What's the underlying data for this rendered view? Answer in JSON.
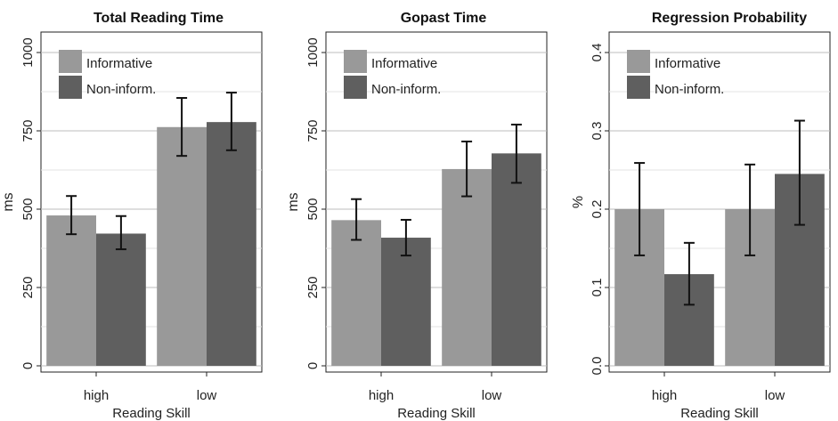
{
  "chart_data": [
    {
      "type": "bar",
      "title": "Total Reading Time",
      "xlabel": "Reading Skill",
      "ylabel": "ms",
      "categories": [
        "high",
        "low"
      ],
      "ylim": [
        0,
        1000
      ],
      "yticks": [
        0,
        250,
        500,
        750,
        1000
      ],
      "series": [
        {
          "name": "Informative",
          "color": "#999999",
          "values": [
            480,
            762
          ],
          "error_low": [
            420,
            670
          ],
          "error_high": [
            542,
            855
          ]
        },
        {
          "name": "Non-inform.",
          "color": "#5f5f5f",
          "values": [
            422,
            778
          ],
          "error_low": [
            372,
            688
          ],
          "error_high": [
            478,
            872
          ]
        }
      ],
      "legend": "top-left",
      "grid": true
    },
    {
      "type": "bar",
      "title": "Gopast Time",
      "xlabel": "Reading Skill",
      "ylabel": "ms",
      "categories": [
        "high",
        "low"
      ],
      "ylim": [
        0,
        1000
      ],
      "yticks": [
        0,
        250,
        500,
        750,
        1000
      ],
      "series": [
        {
          "name": "Informative",
          "color": "#999999",
          "values": [
            465,
            628
          ],
          "error_low": [
            402,
            541
          ],
          "error_high": [
            532,
            716
          ]
        },
        {
          "name": "Non-inform.",
          "color": "#5f5f5f",
          "values": [
            409,
            678
          ],
          "error_low": [
            352,
            584
          ],
          "error_high": [
            466,
            770
          ]
        }
      ],
      "legend": "top-left",
      "grid": true
    },
    {
      "type": "bar",
      "title": "Regression Probability",
      "xlabel": "Reading Skill",
      "ylabel": "%",
      "categories": [
        "high",
        "low"
      ],
      "ylim": [
        0,
        0.4
      ],
      "yticks": [
        "0.0",
        "0.1",
        "0.2",
        "0.3",
        "0.4"
      ],
      "series": [
        {
          "name": "Informative",
          "color": "#999999",
          "values": [
            0.2,
            0.2
          ],
          "error_low": [
            0.141,
            0.141
          ],
          "error_high": [
            0.259,
            0.257
          ]
        },
        {
          "name": "Non-inform.",
          "color": "#5f5f5f",
          "values": [
            0.117,
            0.245
          ],
          "error_low": [
            0.078,
            0.18
          ],
          "error_high": [
            0.157,
            0.313
          ]
        }
      ],
      "legend": "top-left",
      "grid": true
    }
  ]
}
